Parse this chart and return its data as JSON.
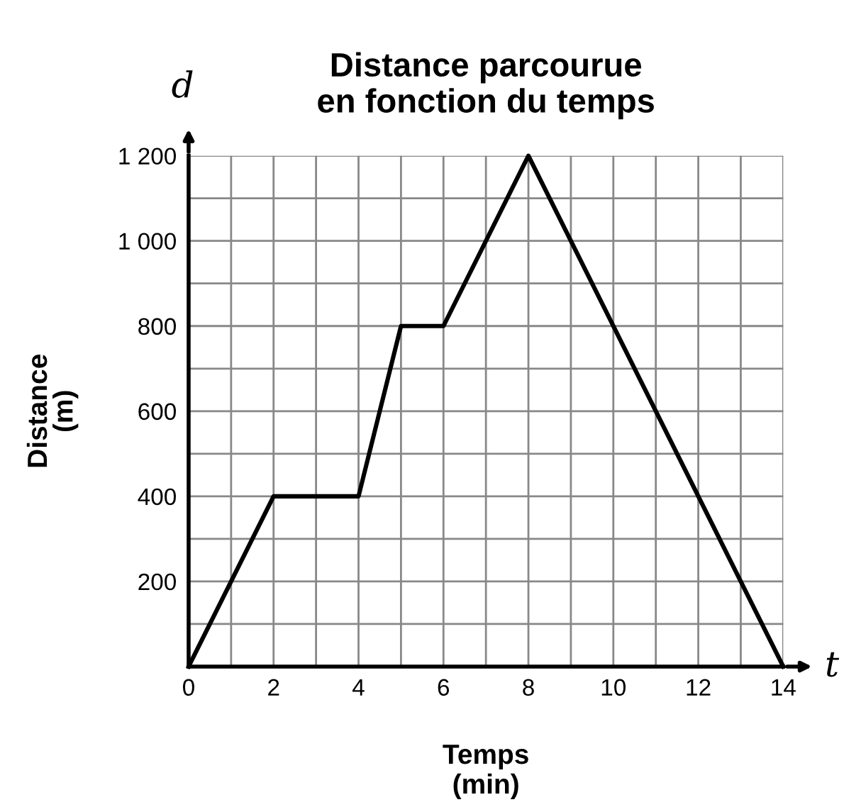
{
  "chart_data": {
    "type": "line",
    "title": "Distance parcourue\nen fonction du temps",
    "xlabel": "Temps\n(min)",
    "ylabel": "Distance\n(m)",
    "annotations": [
      "d",
      "t"
    ],
    "x": [
      0,
      2,
      4,
      5,
      6,
      8,
      14
    ],
    "series": [
      {
        "color": "#000000",
        "values": [
          0,
          400,
          400,
          800,
          800,
          1200,
          0
        ]
      }
    ],
    "xlim": [
      0,
      14
    ],
    "ylim": [
      0,
      1200
    ],
    "xticks": [
      0,
      {
        "value": 1,
        "label": null
      },
      2,
      {
        "value": 3,
        "label": null
      },
      4,
      {
        "value": 5,
        "label": null
      },
      6,
      {
        "value": 7,
        "label": null
      },
      8,
      {
        "value": 9,
        "label": null
      },
      10,
      {
        "value": 11,
        "label": null
      },
      12,
      {
        "value": 13,
        "label": null
      },
      14
    ],
    "yticks": [
      {
        "value": 0,
        "label": null
      },
      {
        "value": 100,
        "label": null
      },
      200,
      {
        "value": 300,
        "label": null
      },
      400,
      {
        "value": 500,
        "label": null
      },
      600,
      {
        "value": 700,
        "label": null
      },
      800,
      {
        "value": 900,
        "label": null
      },
      {
        "value": 1000,
        "label": "1 000"
      },
      {
        "value": 1100,
        "label": null
      },
      {
        "value": 1200,
        "label": "1 200"
      }
    ],
    "grid": true,
    "marker": "none",
    "line_style": "solid"
  }
}
